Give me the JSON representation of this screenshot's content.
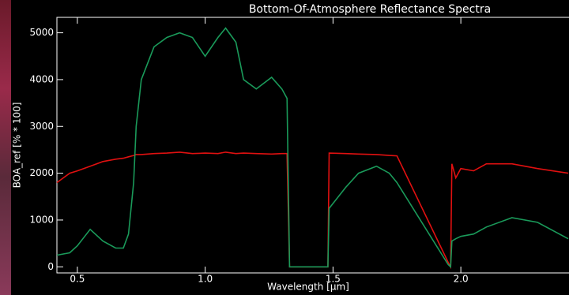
{
  "chart_data": {
    "type": "line",
    "title": "Bottom-Of-Atmosphere Reflectance Spectra",
    "x_label": "Wavelength [μm]",
    "y_label": "BOA_ref [% * 100]",
    "x": [
      0.42,
      0.47,
      0.5,
      0.55,
      0.6,
      0.65,
      0.68,
      0.7,
      0.72,
      0.73,
      0.75,
      0.8,
      0.85,
      0.9,
      0.95,
      1.0,
      1.05,
      1.08,
      1.12,
      1.15,
      1.2,
      1.26,
      1.3,
      1.32,
      1.33,
      1.48,
      1.485,
      1.55,
      1.6,
      1.67,
      1.72,
      1.75,
      1.95,
      1.96,
      1.965,
      1.98,
      2.0,
      2.05,
      2.1,
      2.2,
      2.3,
      2.42
    ],
    "series": [
      {
        "color": "#e01010",
        "values": [
          1800,
          2000,
          2050,
          2150,
          2250,
          2300,
          2320,
          2350,
          2380,
          2400,
          2400,
          2420,
          2430,
          2450,
          2420,
          2430,
          2420,
          2450,
          2420,
          2430,
          2420,
          2410,
          2420,
          2420,
          0,
          0,
          2430,
          2420,
          2410,
          2400,
          2380,
          2370,
          100,
          0,
          2200,
          1900,
          2100,
          2050,
          2200,
          2200,
          2100,
          2000
        ]
      },
      {
        "color": "#1a9a5a",
        "values": [
          250,
          300,
          450,
          800,
          550,
          400,
          400,
          700,
          1800,
          3000,
          4000,
          4700,
          4900,
          5000,
          4900,
          4500,
          4900,
          5100,
          4800,
          4000,
          3800,
          4050,
          3800,
          3600,
          0,
          0,
          1250,
          1700,
          2000,
          2150,
          2000,
          1800,
          50,
          0,
          550,
          600,
          650,
          700,
          850,
          1050,
          950,
          600
        ]
      }
    ],
    "xlim": [
      0.42,
      2.42
    ],
    "ylim": [
      -130,
      5330
    ],
    "xticks": [
      {
        "value": 0.5,
        "label": "0.5"
      },
      {
        "value": 1.0,
        "label": "1.0"
      },
      {
        "value": 1.5,
        "label": "1.5"
      },
      {
        "value": 2.0,
        "label": "2.0"
      }
    ],
    "yticks": [
      0,
      1000,
      2000,
      3000,
      4000,
      5000
    ]
  }
}
